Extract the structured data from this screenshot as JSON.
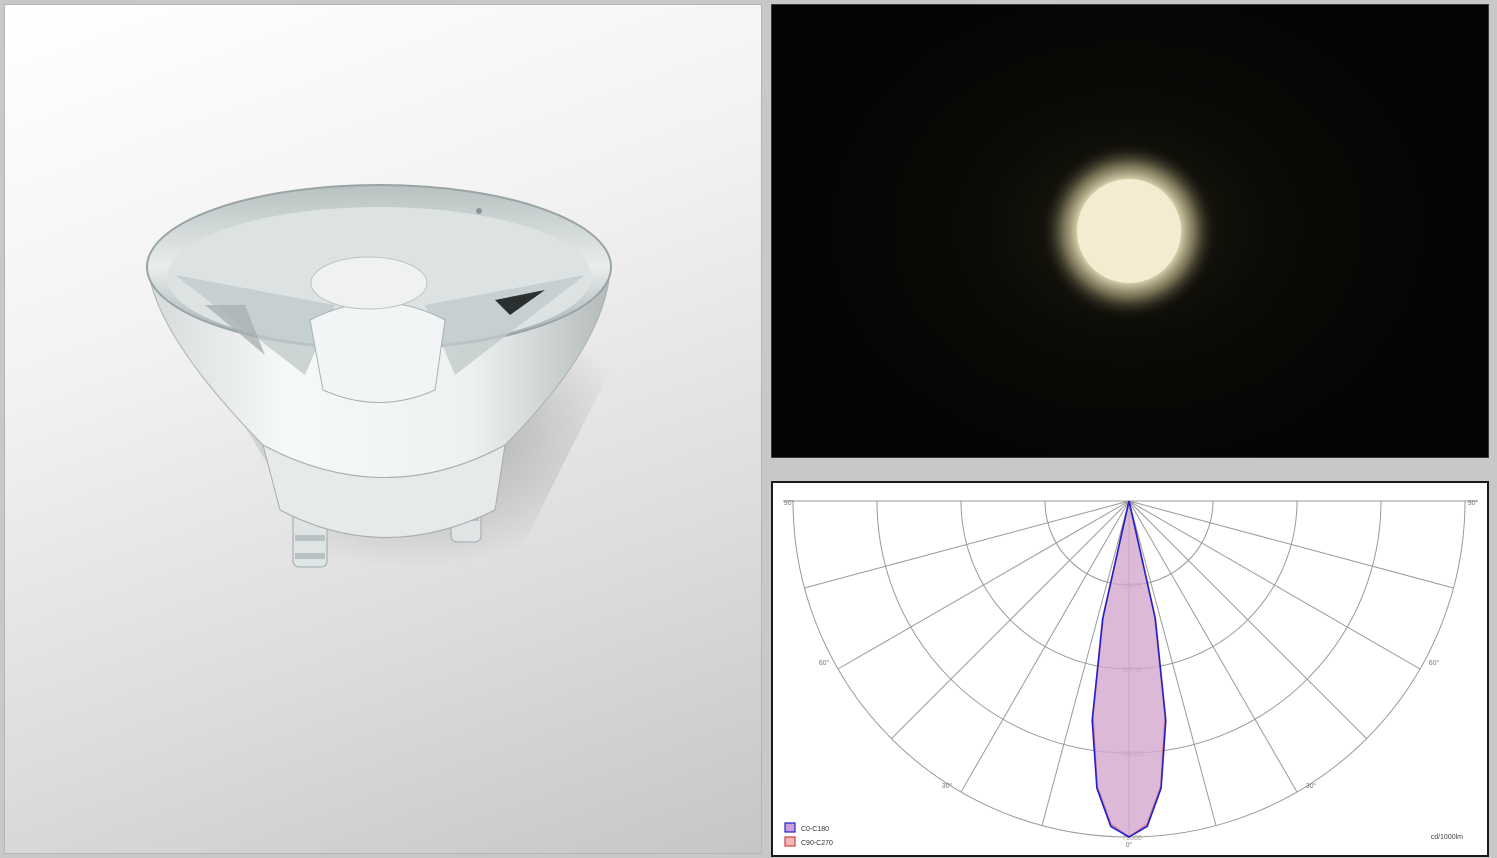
{
  "product": {
    "icon": "led-lens-reflector-icon"
  },
  "beam": {
    "color": "#f4ecd0"
  },
  "chart_data": {
    "type": "polar",
    "angles_left": [
      "90°",
      "60°",
      "30°"
    ],
    "angles_right": [
      "90°",
      "60°",
      "30°"
    ],
    "angle_bottom": "0°",
    "radial_ticks": [
      "19875",
      "39750",
      "59625",
      "79500"
    ],
    "unit": "cd/1000lm",
    "series": [
      {
        "name": "C0-C180",
        "color": "#2222cc",
        "fill": "#c9a0d8",
        "angles": [
          -5,
          -4,
          -3,
          -2,
          -1,
          0,
          1,
          2,
          3,
          4,
          5
        ],
        "values": [
          0,
          28000,
          52000,
          68000,
          77000,
          79500,
          77000,
          68000,
          52000,
          28000,
          0
        ]
      },
      {
        "name": "C90-C270",
        "color": "#d04040",
        "fill": "#f0b8b8",
        "angles": [
          -5,
          -4,
          -3,
          -2,
          -1,
          0,
          1,
          2,
          3,
          4,
          5
        ],
        "values": [
          0,
          27000,
          51000,
          67500,
          76500,
          79500,
          76500,
          67500,
          51000,
          27000,
          0
        ]
      }
    ],
    "rmax": 79500
  }
}
